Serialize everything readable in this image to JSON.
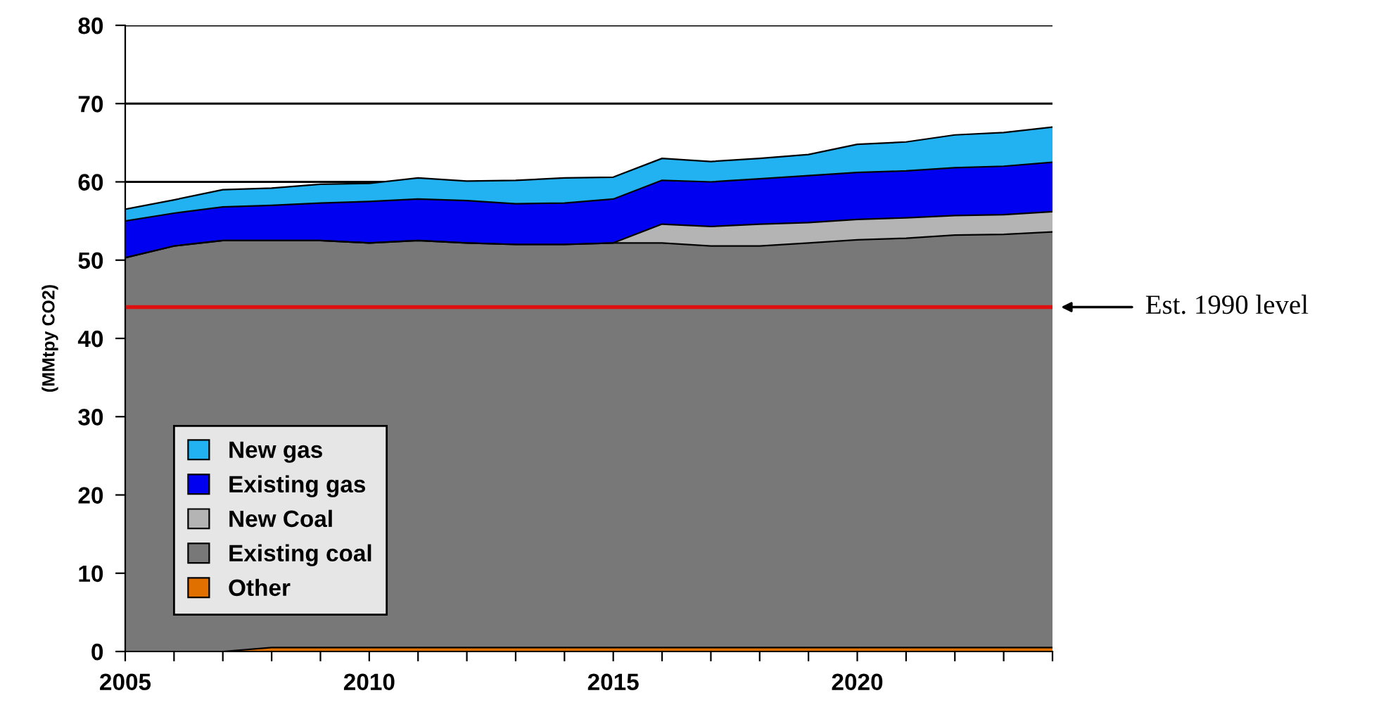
{
  "chart_data": {
    "type": "area",
    "stacked": true,
    "ylabel": "(MMtpy CO2)",
    "x": [
      2005,
      2006,
      2007,
      2008,
      2009,
      2010,
      2011,
      2012,
      2013,
      2014,
      2015,
      2016,
      2017,
      2018,
      2019,
      2020,
      2021,
      2022,
      2023,
      2024
    ],
    "series": [
      {
        "name": "Other",
        "color": "#e07000",
        "values": [
          0,
          0,
          0,
          0.5,
          0.5,
          0.5,
          0.5,
          0.5,
          0.5,
          0.5,
          0.5,
          0.5,
          0.5,
          0.5,
          0.5,
          0.5,
          0.5,
          0.5,
          0.5,
          0.5
        ]
      },
      {
        "name": "Existing coal",
        "color": "#787878",
        "values": [
          50.3,
          51.8,
          52.5,
          52.0,
          52.0,
          51.7,
          52.0,
          51.7,
          51.5,
          51.5,
          51.7,
          51.7,
          51.3,
          51.3,
          51.7,
          52.1,
          52.3,
          52.7,
          52.8,
          53.1
        ]
      },
      {
        "name": "New Coal",
        "color": "#b4b4b4",
        "values": [
          0,
          0,
          0,
          0,
          0,
          0,
          0,
          0,
          0,
          0,
          0,
          2.4,
          2.5,
          2.8,
          2.6,
          2.6,
          2.6,
          2.5,
          2.5,
          2.6
        ]
      },
      {
        "name": "Existing gas",
        "color": "#0000f0",
        "values": [
          4.7,
          4.2,
          4.3,
          4.5,
          4.8,
          5.3,
          5.3,
          5.4,
          5.2,
          5.3,
          5.6,
          5.6,
          5.7,
          5.8,
          6.0,
          6.0,
          6.0,
          6.1,
          6.2,
          6.3
        ]
      },
      {
        "name": "New gas",
        "color": "#22b2f2",
        "values": [
          1.5,
          1.7,
          2.2,
          2.2,
          2.4,
          2.3,
          2.7,
          2.5,
          3.0,
          3.2,
          2.8,
          2.8,
          2.6,
          2.6,
          2.7,
          3.6,
          3.7,
          4.2,
          4.3,
          4.5
        ]
      }
    ],
    "xlim": [
      2005,
      2024
    ],
    "xticks": [
      2005,
      {
        "value": 2006,
        "label": null
      },
      {
        "value": 2007,
        "label": null
      },
      {
        "value": 2008,
        "label": null
      },
      {
        "value": 2009,
        "label": null
      },
      2010,
      {
        "value": 2011,
        "label": null
      },
      {
        "value": 2012,
        "label": null
      },
      {
        "value": 2013,
        "label": null
      },
      {
        "value": 2014,
        "label": null
      },
      2015,
      {
        "value": 2016,
        "label": null
      },
      {
        "value": 2017,
        "label": null
      },
      {
        "value": 2018,
        "label": null
      },
      {
        "value": 2019,
        "label": null
      },
      2020,
      {
        "value": 2021,
        "label": null
      },
      {
        "value": 2022,
        "label": null
      },
      {
        "value": 2023,
        "label": null
      },
      {
        "value": 2024,
        "label": null
      }
    ],
    "ylim": [
      0,
      80
    ],
    "yticks": [
      0,
      10,
      20,
      30,
      40,
      50,
      60,
      70,
      80
    ],
    "grid": "y",
    "legend": "bottom left",
    "ref_lines": [
      {
        "axis": "y",
        "value": 44,
        "label": "Est. 1990 level",
        "color": "#e01010"
      }
    ]
  }
}
